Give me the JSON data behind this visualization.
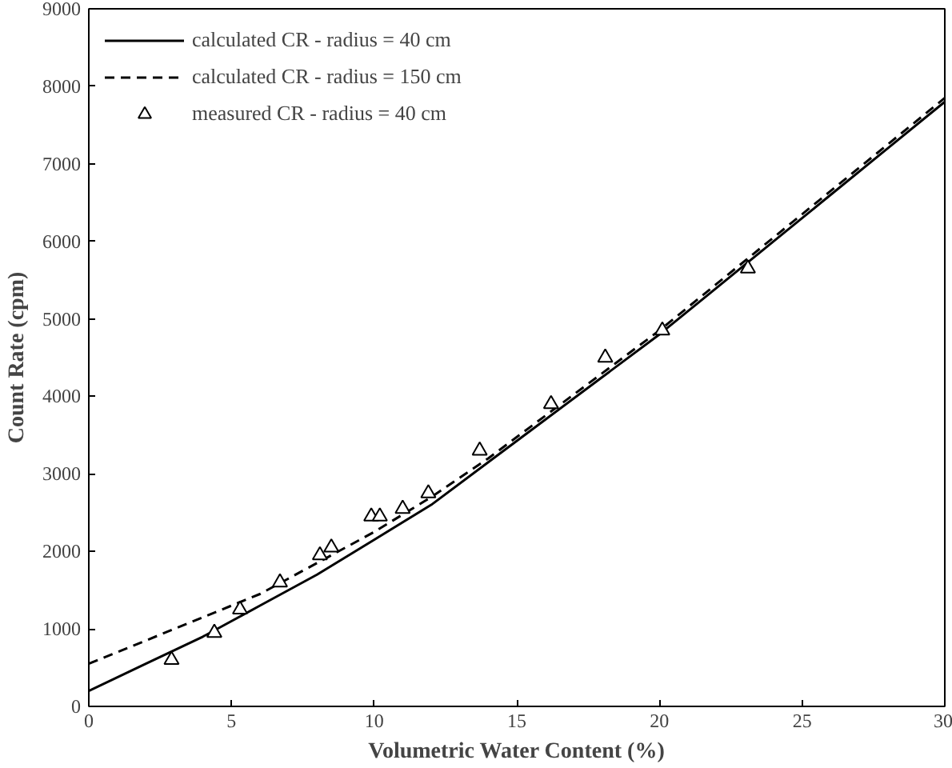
{
  "chart_data": {
    "type": "line",
    "xlabel": "Volumetric Water Content (%)",
    "ylabel": "Count Rate (cpm)",
    "xlim": [
      0,
      30
    ],
    "ylim": [
      0,
      9000
    ],
    "xticks": [
      0,
      5,
      10,
      15,
      20,
      25,
      30
    ],
    "yticks": [
      0,
      1000,
      2000,
      3000,
      4000,
      5000,
      6000,
      7000,
      8000,
      9000
    ],
    "grid": false,
    "legend": "top left",
    "series": [
      {
        "name": "calculated CR - radius = 40 cm",
        "color": "#000000",
        "line_style": "solid",
        "marker": "none",
        "x": [
          0,
          2,
          4,
          6,
          8,
          10,
          12,
          14,
          16,
          18,
          20,
          22,
          24,
          26,
          28,
          30
        ],
        "values": [
          200,
          550,
          900,
          1300,
          1700,
          2150,
          2600,
          3150,
          3700,
          4250,
          4800,
          5400,
          6000,
          6600,
          7200,
          7800
        ]
      },
      {
        "name": "calculated CR - radius = 150 cm",
        "color": "#000000",
        "line_style": "dashed",
        "marker": "none",
        "x": [
          0,
          2,
          4,
          6,
          8,
          10,
          12,
          14,
          16,
          18,
          20,
          22,
          24,
          26,
          28,
          30
        ],
        "values": [
          550,
          850,
          1150,
          1450,
          1850,
          2250,
          2700,
          3200,
          3750,
          4300,
          4850,
          5450,
          6050,
          6650,
          7250,
          7850
        ]
      },
      {
        "name": "measured CR - radius = 40 cm",
        "type": "scatter",
        "color": "#000000",
        "marker": "triangle",
        "x": [
          2.9,
          4.4,
          5.3,
          6.7,
          8.1,
          8.5,
          9.9,
          10.2,
          11,
          11.9,
          13.7,
          16.2,
          18.1,
          20.1,
          23.1
        ],
        "values": [
          600,
          950,
          1250,
          1600,
          1950,
          2050,
          2450,
          2450,
          2550,
          2750,
          3300,
          3900,
          4500,
          4850,
          5650
        ]
      }
    ]
  }
}
